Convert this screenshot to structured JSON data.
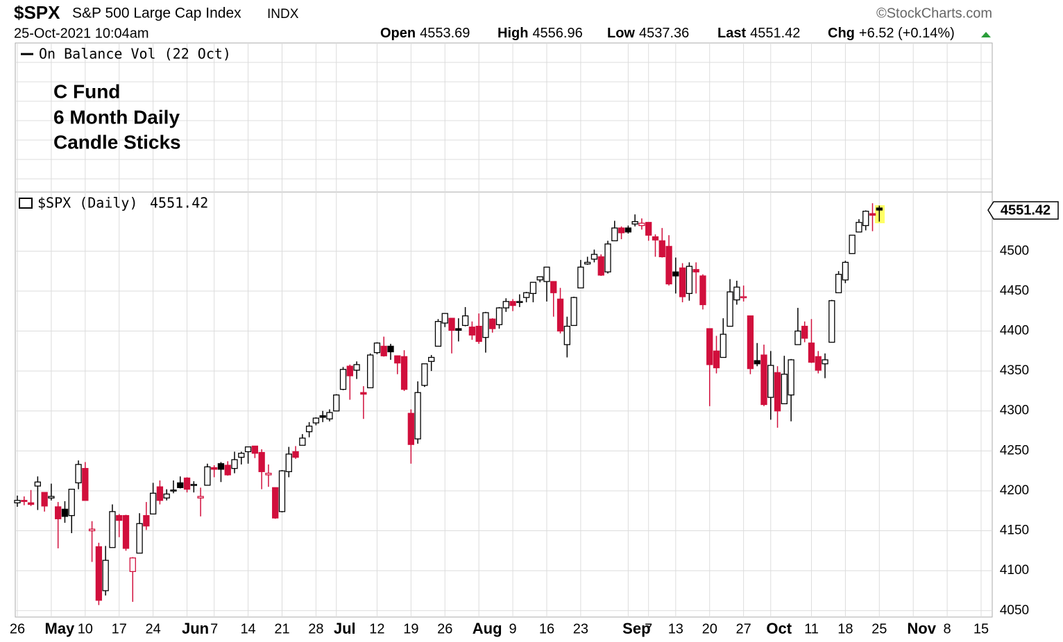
{
  "header": {
    "symbol": "$SPX",
    "name": "S&P 500 Large Cap Index",
    "exchange": "INDX",
    "source": "©StockCharts.com",
    "timestamp": "25-Oct-2021 10:04am",
    "quote": [
      {
        "label": "Open",
        "value": 4553.69
      },
      {
        "label": "High",
        "value": 4556.96
      },
      {
        "label": "Low",
        "value": 4537.36
      },
      {
        "label": "Last",
        "value": 4551.42
      },
      {
        "label": "Chg",
        "value": "+6.52 (+0.14%)"
      }
    ]
  },
  "chart_data": {
    "type": "candlestick",
    "upper_panel_legend": "On Balance Vol (22 Oct)",
    "annotation": [
      "C Fund",
      "6 Month Daily",
      "Candle Sticks"
    ],
    "ylim": [
      4042,
      4574
    ],
    "yticks": [
      4050,
      4100,
      4150,
      4200,
      4250,
      4300,
      4350,
      4400,
      4450,
      4500
    ],
    "grid": true,
    "categories": [
      "26",
      null,
      null,
      null,
      null,
      "May",
      null,
      null,
      null,
      null,
      "10",
      null,
      null,
      null,
      null,
      "17",
      null,
      null,
      null,
      null,
      "24",
      null,
      null,
      null,
      null,
      "Jun",
      null,
      null,
      null,
      "7",
      null,
      null,
      null,
      null,
      "14",
      null,
      null,
      null,
      null,
      "21",
      null,
      null,
      null,
      null,
      "28",
      null,
      null,
      "Jul",
      null,
      null,
      null,
      null,
      null,
      "12",
      null,
      null,
      null,
      null,
      "19",
      null,
      null,
      null,
      null,
      "26",
      null,
      null,
      null,
      null,
      "Aug",
      null,
      null,
      null,
      null,
      "9",
      null,
      null,
      null,
      null,
      "16",
      null,
      null,
      null,
      null,
      "23",
      null,
      null,
      null,
      null,
      null,
      null,
      "Sep",
      null,
      null,
      "7",
      null,
      null,
      null,
      "13",
      null,
      null,
      null,
      null,
      "20",
      null,
      null,
      null,
      null,
      "27",
      null,
      null,
      null,
      "Oct",
      null,
      null,
      null,
      null,
      null,
      "11",
      null,
      null,
      null,
      null,
      "18",
      null,
      null,
      null,
      null,
      "25",
      null,
      null,
      null,
      null,
      "Nov",
      null,
      null,
      null,
      null,
      "8",
      null,
      null,
      null,
      null,
      "15"
    ],
    "series": [
      {
        "name": "$SPX (Daily)",
        "up_color": "#000000",
        "down_color": "#d10f3c",
        "open": [
          4185,
          4188,
          4185,
          4206,
          4198,
          4191,
          4180,
          4177,
          4169,
          4210,
          4228,
          4150,
          4130,
          4075,
          4129,
          4169,
          4169,
          4099,
          4122,
          4169,
          4171,
          4205,
          4191,
          4201,
          4210,
          4216,
          4207,
          4191,
          4207,
          4229,
          4234,
          4232,
          4228,
          4242,
          4249,
          4256,
          4248,
          4220,
          4204,
          4174,
          4224,
          4249,
          4257,
          4274,
          4285,
          4294,
          4290,
          4300,
          4327,
          4356,
          4351,
          4323,
          4329,
          4373,
          4381,
          4381,
          4369,
          4368,
          4297,
          4265,
          4332,
          4362,
          4381,
          4410,
          4416,
          4403,
          4407,
          4405,
          4406,
          4392,
          4415,
          4408,
          4429,
          4437,
          4436,
          4442,
          4447,
          4464,
          4462,
          4462,
          4440,
          4383,
          4407,
          4454,
          4484,
          4490,
          4493,
          4474,
          4513,
          4529,
          4529,
          4534,
          4532,
          4536,
          4518,
          4513,
          4506,
          4474,
          4479,
          4447,
          4477,
          4469,
          4403,
          4375,
          4367,
          4406,
          4439,
          4442,
          4419,
          4363,
          4370,
          4317,
          4348,
          4309,
          4320,
          4383,
          4406,
          4385,
          4368,
          4359,
          4386,
          4448,
          4464,
          4497,
          4524,
          4532,
          4547,
          4554,
          null,
          null,
          null,
          null,
          null,
          null,
          null,
          null,
          null,
          null,
          null,
          null,
          null,
          null,
          null
        ],
        "high": [
          4194,
          4193,
          4201,
          4218,
          4198,
          4209,
          4186,
          4187,
          4202,
          4238,
          4236,
          4162,
          4135,
          4131,
          4183,
          4171,
          4170,
          4117,
          4172,
          4186,
          4210,
          4213,
          4202,
          4213,
          4218,
          4217,
          4212,
          4204,
          4234,
          4232,
          4236,
          4237,
          4249,
          4249,
          4255,
          4256,
          4252,
          4233,
          4204,
          4226,
          4255,
          4256,
          4271,
          4286,
          4292,
          4300,
          4302,
          4321,
          4355,
          4358,
          4362,
          4331,
          4372,
          4386,
          4393,
          4384,
          4369,
          4376,
          4302,
          4337,
          4359,
          4370,
          4415,
          4422,
          4416,
          4416,
          4430,
          4412,
          4422,
          4424,
          4416,
          4430,
          4441,
          4440,
          4446,
          4449,
          4461,
          4468,
          4480,
          4462,
          4454,
          4418,
          4443,
          4489,
          4493,
          4502,
          4496,
          4513,
          4538,
          4531,
          4532,
          4546,
          4541,
          4536,
          4521,
          4529,
          4520,
          4492,
          4485,
          4486,
          4486,
          4471,
          4403,
          4394,
          4416,
          4465,
          4463,
          4457,
          4419,
          4385,
          4383,
          4375,
          4356,
          4369,
          4365,
          4429,
          4412,
          4415,
          4375,
          4372,
          4439,
          4475,
          4488,
          4520,
          4540,
          4551,
          4560,
          4557,
          null,
          null,
          null,
          null,
          null,
          null,
          null,
          null,
          null,
          null,
          null,
          null,
          null,
          null,
          null
        ],
        "low": [
          4180,
          4182,
          4181,
          4176,
          4174,
          4188,
          4128,
          4160,
          4147,
          4202,
          4188,
          4111,
          4057,
          4069,
          4129,
          4142,
          4125,
          4061,
          4122,
          4151,
          4171,
          4183,
          4188,
          4197,
          4203,
          4198,
          4198,
          4168,
          4207,
          4217,
          4211,
          4219,
          4222,
          4233,
          4234,
          4241,
          4202,
          4205,
          4165,
          4173,
          4217,
          4240,
          4257,
          4267,
          4282,
          4286,
          4287,
          4300,
          4326,
          4314,
          4340,
          4290,
          4329,
          4371,
          4368,
          4364,
          4346,
          4325,
          4234,
          4259,
          4330,
          4350,
          4381,
          4405,
          4372,
          4387,
          4406,
          4389,
          4384,
          4373,
          4398,
          4403,
          4424,
          4425,
          4430,
          4436,
          4436,
          4461,
          4437,
          4418,
          4397,
          4367,
          4407,
          4454,
          4483,
          4486,
          4469,
          4472,
          4513,
          4515,
          4522,
          4531,
          4527,
          4513,
          4493,
          4492,
          4457,
          4447,
          4436,
          4438,
          4447,
          4427,
          4306,
          4347,
          4367,
          4406,
          4433,
          4437,
          4346,
          4356,
          4306,
          4289,
          4279,
          4309,
          4287,
          4383,
          4386,
          4360,
          4347,
          4341,
          4386,
          4448,
          4460,
          4497,
          4524,
          4526,
          4525,
          4537,
          null,
          null,
          null,
          null,
          null,
          null,
          null,
          null,
          null,
          null,
          null,
          null,
          null,
          null,
          null
        ],
        "close": [
          4188,
          4187,
          4183,
          4211,
          4181,
          4193,
          4165,
          4168,
          4202,
          4233,
          4188,
          4152,
          4063,
          4113,
          4174,
          4163,
          4128,
          4116,
          4159,
          4156,
          4197,
          4188,
          4196,
          4201,
          4204,
          4202,
          4208,
          4193,
          4230,
          4227,
          4227,
          4220,
          4239,
          4247,
          4255,
          4247,
          4224,
          4222,
          4166,
          4225,
          4246,
          4242,
          4266,
          4281,
          4291,
          4292,
          4298,
          4320,
          4352,
          4344,
          4358,
          4321,
          4370,
          4385,
          4369,
          4374,
          4360,
          4327,
          4258,
          4323,
          4359,
          4367,
          4412,
          4422,
          4401,
          4401,
          4419,
          4395,
          4387,
          4423,
          4403,
          4429,
          4437,
          4432,
          4437,
          4448,
          4461,
          4468,
          4480,
          4448,
          4400,
          4406,
          4442,
          4480,
          4486,
          4496,
          4470,
          4509,
          4529,
          4523,
          4524,
          4537,
          4535,
          4520,
          4514,
          4493,
          4459,
          4469,
          4443,
          4481,
          4474,
          4433,
          4358,
          4354,
          4396,
          4449,
          4455,
          4443,
          4353,
          4359,
          4308,
          4357,
          4300,
          4346,
          4364,
          4400,
          4391,
          4361,
          4351,
          4364,
          4438,
          4471,
          4486,
          4520,
          4536,
          4550,
          4545,
          4551.42,
          null,
          null,
          null,
          null,
          null,
          null,
          null,
          null,
          null,
          null,
          null,
          null,
          null,
          null,
          null
        ]
      }
    ]
  }
}
